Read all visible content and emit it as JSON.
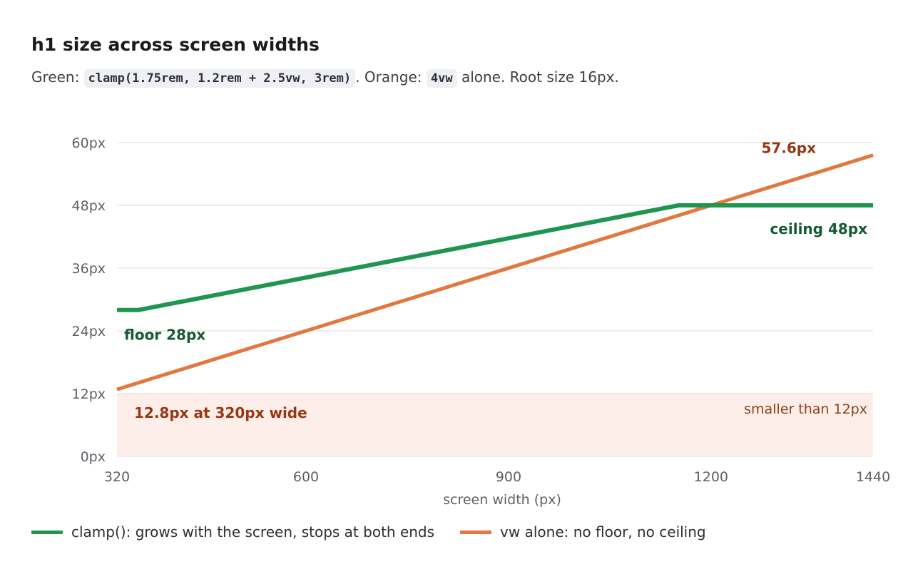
{
  "header": {
    "title": "h1 size across screen widths",
    "subtitle_green_prefix": "Green:",
    "subtitle_green_code": "clamp(1.75rem, 1.2rem + 2.5vw, 3rem)",
    "subtitle_orange_prefix": ". Orange:",
    "subtitle_orange_code": "4vw",
    "subtitle_suffix": "alone. Root size 16px."
  },
  "colors": {
    "clamp": "#1e9650",
    "vw": "#e2773f",
    "clamp_label": "#145a32",
    "vw_label": "#983714",
    "danger_band": "#fdeee9",
    "danger_text": "#8a4216",
    "grid": "#e6e8eb",
    "tick": "#5d6167"
  },
  "chart_data": {
    "type": "line",
    "xlabel": "screen width (px)",
    "ylabel": "",
    "xlim": [
      320,
      1440
    ],
    "ylim": [
      0,
      60
    ],
    "x_ticks": [
      320,
      600,
      900,
      1200,
      1440
    ],
    "y_ticks": [
      0,
      12,
      24,
      36,
      48,
      60
    ],
    "y_tick_labels": [
      "0px",
      "12px",
      "24px",
      "36px",
      "48px",
      "60px"
    ],
    "grid": true,
    "legend_placement": "bottom",
    "series": [
      {
        "name": "clamp(): grows with the screen, stops at both ends",
        "color_key": "clamp",
        "points": [
          [
            320,
            28
          ],
          [
            352,
            28
          ],
          [
            1152,
            48
          ],
          [
            1440,
            48
          ]
        ]
      },
      {
        "name": "vw alone: no floor, no ceiling",
        "color_key": "vw",
        "points": [
          [
            320,
            12.8
          ],
          [
            1440,
            57.6
          ]
        ]
      }
    ],
    "shaded_region": {
      "y_from": 0,
      "y_to": 12,
      "label": "smaller than 12px"
    },
    "annotations": [
      {
        "text": "57.6px",
        "x": 1440,
        "y": 57.6,
        "color_key": "vw_label"
      },
      {
        "text": "ceiling 48px",
        "x": 1440,
        "y": 48,
        "color_key": "clamp_label"
      },
      {
        "text": "floor 28px",
        "x": 320,
        "y": 28,
        "color_key": "clamp_label"
      },
      {
        "text": "12.8px at 320px wide",
        "x": 320,
        "y": 12.8,
        "color_key": "vw_label"
      }
    ]
  }
}
